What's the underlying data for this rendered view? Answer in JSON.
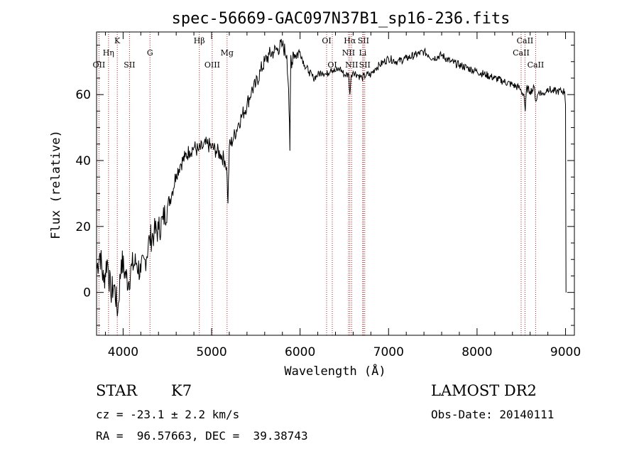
{
  "chart_data": {
    "type": "line",
    "title": "spec-56669-GAC097N37B1_sp16-236.fits",
    "xlabel": "Wavelength (Å)",
    "ylabel": "Flux (relative)",
    "xlim": [
      3700,
      9100
    ],
    "ylim": [
      -13,
      79
    ],
    "xticks": [
      4000,
      5000,
      6000,
      7000,
      8000,
      9000
    ],
    "yticks": [
      0,
      20,
      40,
      60
    ],
    "series": [
      {
        "x": [
          3700,
          3740,
          3780,
          3820,
          3860,
          3900,
          3940,
          3980,
          4020,
          4060,
          4100,
          4150,
          4200,
          4250,
          4300,
          4350,
          4400,
          4450,
          4500,
          4550,
          4600,
          4650,
          4700,
          4750,
          4800,
          4850,
          4900,
          4950,
          5000,
          5050,
          5100,
          5150,
          5170,
          5185,
          5200,
          5250,
          5300,
          5350,
          5400,
          5450,
          5500,
          5550,
          5600,
          5650,
          5700,
          5750,
          5800,
          5850,
          5870,
          5885,
          5895,
          5905,
          5920,
          5950,
          6000,
          6050,
          6100,
          6150,
          6200,
          6250,
          6300,
          6350,
          6400,
          6450,
          6500,
          6550,
          6563,
          6580,
          6600,
          6650,
          6700,
          6750,
          6800,
          6850,
          6900,
          6950,
          7000,
          7100,
          7200,
          7300,
          7400,
          7450,
          7500,
          7600,
          7700,
          7800,
          7900,
          8000,
          8100,
          8200,
          8300,
          8400,
          8480,
          8500,
          8530,
          8545,
          8560,
          8600,
          8650,
          8662,
          8700,
          8750,
          8800,
          8850,
          8900,
          8950,
          8990,
          9000,
          9005
        ],
        "values": [
          7,
          12,
          3,
          10,
          0,
          2,
          -6,
          10,
          6,
          3,
          8,
          9,
          6,
          10,
          16,
          18,
          19,
          22,
          26,
          30,
          36,
          39,
          41,
          43,
          44,
          43,
          44,
          45,
          44,
          43,
          42,
          40,
          38,
          27,
          44,
          47,
          51,
          54,
          57,
          61,
          63,
          67,
          70,
          72,
          73,
          74,
          75,
          72,
          62,
          43,
          72,
          68,
          73,
          72,
          73,
          69,
          67,
          65,
          66,
          67,
          66,
          68,
          67,
          68,
          66,
          66,
          60,
          66,
          67,
          66,
          65,
          66,
          66,
          68,
          69,
          70,
          71,
          70,
          71,
          72,
          73,
          72,
          71,
          72,
          70,
          69,
          68,
          67,
          66,
          65,
          64,
          63,
          62,
          61,
          60,
          55,
          62,
          61,
          62,
          58,
          61,
          60,
          62,
          61,
          61,
          61,
          61,
          57,
          0
        ]
      }
    ],
    "line_markers": [
      {
        "label": "OII",
        "wave": 3727,
        "row": 3
      },
      {
        "label": "Hη",
        "wave": 3835,
        "row": 2
      },
      {
        "label": "K",
        "wave": 3934,
        "row": 1
      },
      {
        "label": "SII",
        "wave": 4072,
        "row": 3
      },
      {
        "label": "G",
        "wave": 4304,
        "row": 2
      },
      {
        "label": "Hβ",
        "wave": 4861,
        "row": 1
      },
      {
        "label": "OIII",
        "wave": 5007,
        "row": 3
      },
      {
        "label": "Mg",
        "wave": 5175,
        "row": 2
      },
      {
        "label": "OI",
        "wave": 6300,
        "row": 1
      },
      {
        "label": "OI",
        "wave": 6364,
        "row": 3
      },
      {
        "label": "Hα",
        "wave": 6563,
        "row": 1
      },
      {
        "label": "NII",
        "wave": 6548,
        "row": 2
      },
      {
        "label": "NII",
        "wave": 6583,
        "row": 3
      },
      {
        "label": "SII",
        "wave": 6716,
        "row": 1
      },
      {
        "label": "Li",
        "wave": 6708,
        "row": 2
      },
      {
        "label": "SII",
        "wave": 6731,
        "row": 3
      },
      {
        "label": "CaII",
        "wave": 8542,
        "row": 1
      },
      {
        "label": "CaII",
        "wave": 8498,
        "row": 2
      },
      {
        "label": "CaII",
        "wave": 8662,
        "row": 3
      }
    ],
    "colors": {
      "spectrum": "#000000",
      "markers": "#b22222"
    }
  },
  "info": {
    "class": "STAR",
    "subclass": "K7",
    "survey": "LAMOST DR2",
    "cz": "cz = -23.1 ± 2.2 km/s",
    "obs_date": "Obs-Date: 20140111",
    "radec": "RA =  96.57663, DEC =  39.38743"
  }
}
